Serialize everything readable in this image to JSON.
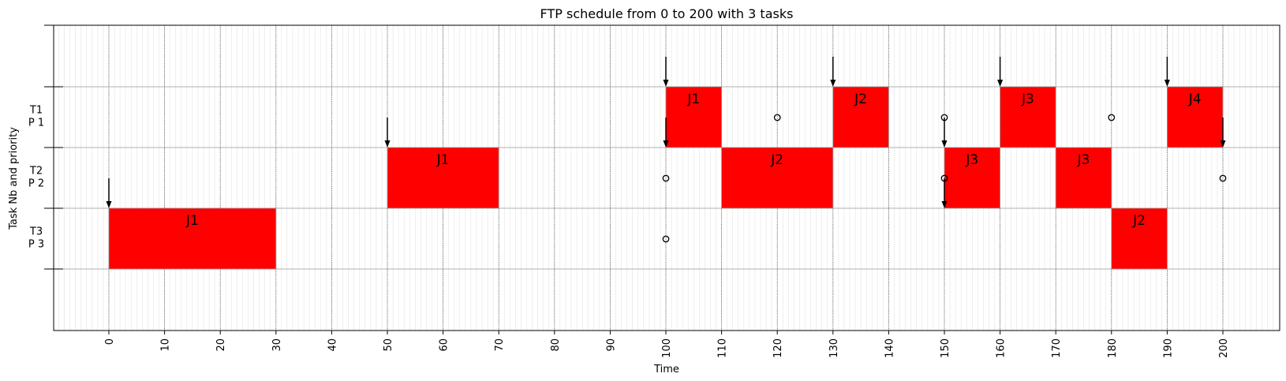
{
  "chart_data": {
    "type": "gantt",
    "title": "FTP schedule from 0 to 200 with 3 tasks",
    "xlabel": "Time",
    "ylabel": "Task Nb and priority",
    "xlim": [
      -10,
      210
    ],
    "x_ticks": [
      0,
      10,
      20,
      30,
      40,
      50,
      60,
      70,
      80,
      90,
      100,
      110,
      120,
      130,
      140,
      150,
      160,
      170,
      180,
      190,
      200
    ],
    "x_minor_step": 1,
    "grid": true,
    "tasks": [
      {
        "name": "T1",
        "priority": "P 1"
      },
      {
        "name": "T2",
        "priority": "P 2"
      },
      {
        "name": "T3",
        "priority": "P 3"
      }
    ],
    "bar_color": "#ff0000",
    "executions": [
      {
        "task": "T3",
        "job": "J1",
        "start": 0,
        "end": 30
      },
      {
        "task": "T2",
        "job": "J1",
        "start": 50,
        "end": 70
      },
      {
        "task": "T1",
        "job": "J1",
        "start": 100,
        "end": 110
      },
      {
        "task": "T2",
        "job": "J2",
        "start": 110,
        "end": 130
      },
      {
        "task": "T1",
        "job": "J2",
        "start": 130,
        "end": 140
      },
      {
        "task": "T2",
        "job": "J3",
        "start": 150,
        "end": 160
      },
      {
        "task": "T1",
        "job": "J3",
        "start": 160,
        "end": 170
      },
      {
        "task": "T2",
        "job": "J3",
        "start": 170,
        "end": 180
      },
      {
        "task": "T3",
        "job": "J2",
        "start": 180,
        "end": 190
      },
      {
        "task": "T1",
        "job": "J4",
        "start": 190,
        "end": 200
      }
    ],
    "releases": [
      {
        "task": "T3",
        "time": 0
      },
      {
        "task": "T2",
        "time": 50
      },
      {
        "task": "T1",
        "time": 100
      },
      {
        "task": "T2",
        "time": 100
      },
      {
        "task": "T1",
        "time": 130
      },
      {
        "task": "T2",
        "time": 150
      },
      {
        "task": "T3",
        "time": 150
      },
      {
        "task": "T1",
        "time": 160
      },
      {
        "task": "T1",
        "time": 190
      },
      {
        "task": "T2",
        "time": 200
      }
    ],
    "deadlines": [
      {
        "task": "T2",
        "time": 100
      },
      {
        "task": "T3",
        "time": 100
      },
      {
        "task": "T1",
        "time": 120
      },
      {
        "task": "T1",
        "time": 150
      },
      {
        "task": "T2",
        "time": 150
      },
      {
        "task": "T1",
        "time": 180
      },
      {
        "task": "T2",
        "time": 200
      }
    ]
  }
}
